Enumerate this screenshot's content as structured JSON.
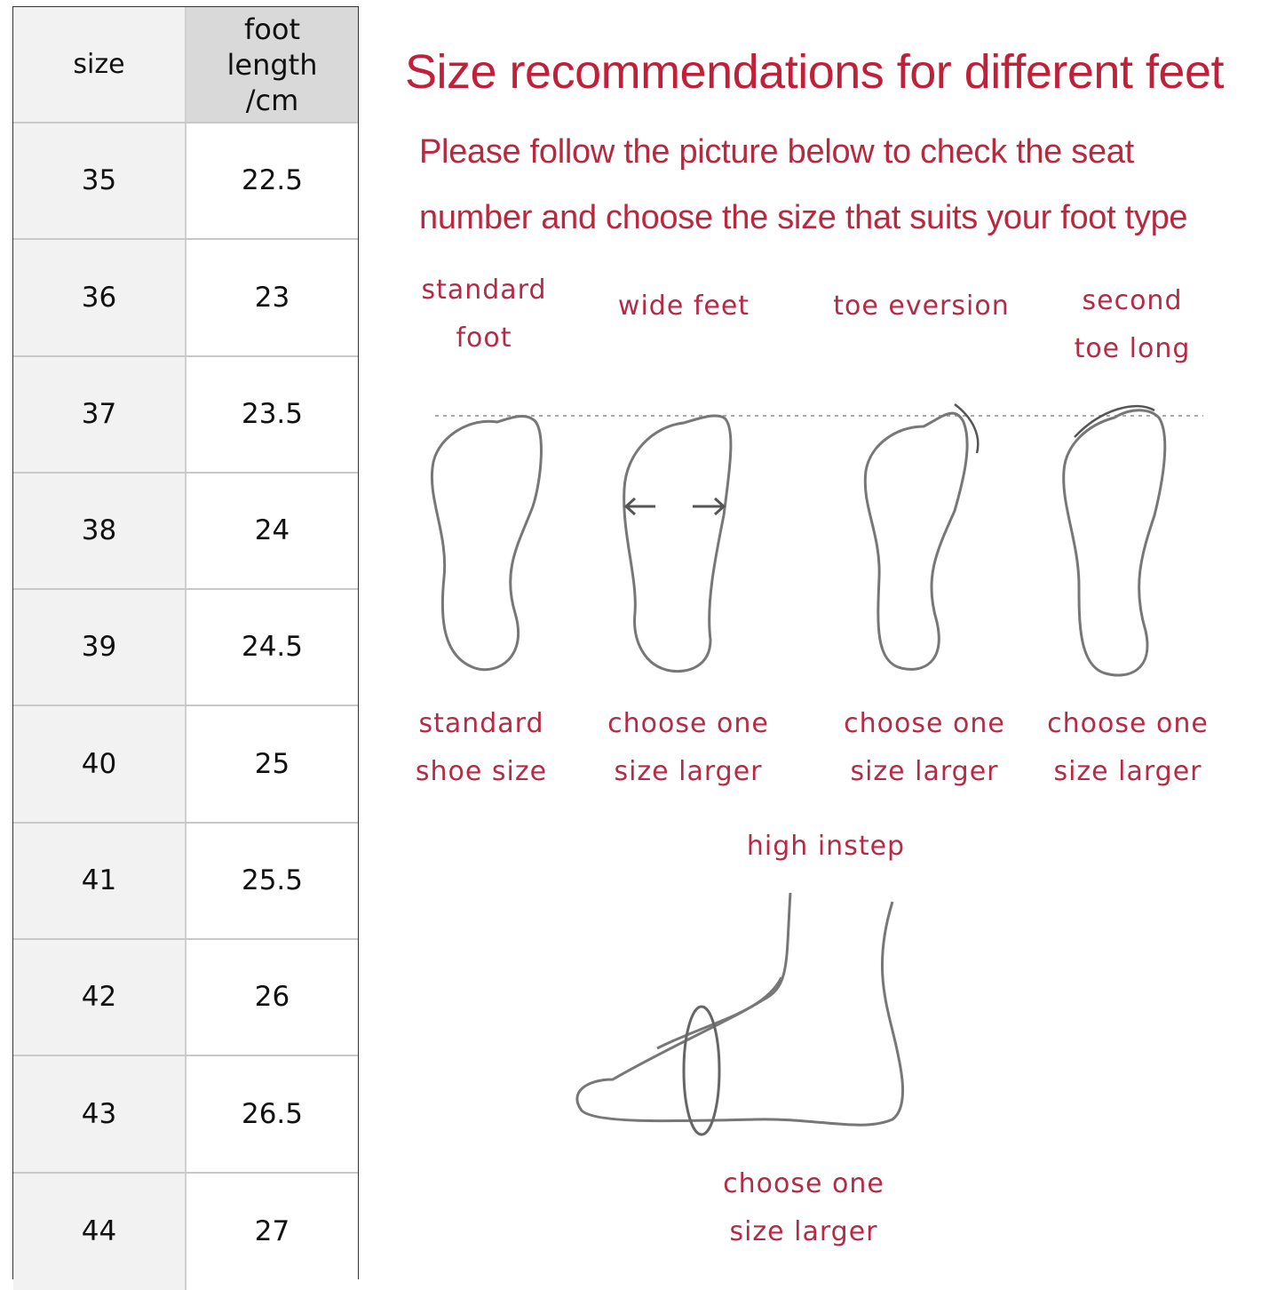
{
  "size_table": {
    "headers": {
      "size": "size",
      "foot_length": "foot length /cm"
    },
    "rows": [
      {
        "size": "35",
        "foot_length": "22.5"
      },
      {
        "size": "36",
        "foot_length": "23"
      },
      {
        "size": "37",
        "foot_length": "23.5"
      },
      {
        "size": "38",
        "foot_length": "24"
      },
      {
        "size": "39",
        "foot_length": "24.5"
      },
      {
        "size": "40",
        "foot_length": "25"
      },
      {
        "size": "41",
        "foot_length": "25.5"
      },
      {
        "size": "42",
        "foot_length": "26"
      },
      {
        "size": "43",
        "foot_length": "26.5"
      },
      {
        "size": "44",
        "foot_length": "27"
      }
    ]
  },
  "guide": {
    "title": "Size recommendations for different feet",
    "subtitle_line1": "Please follow the picture below to check the seat",
    "subtitle_line2": "number and choose the size that suits your foot type",
    "foot_types": [
      {
        "name": "standard foot",
        "advice": "standard shoe size"
      },
      {
        "name": "wide feet",
        "advice": "choose one size larger"
      },
      {
        "name": "toe eversion",
        "advice": "choose one size larger"
      },
      {
        "name": "second toe long",
        "advice": "choose one size larger"
      },
      {
        "name": "high instep",
        "advice": "choose one size larger"
      }
    ],
    "accent_color": "#c0203a"
  }
}
